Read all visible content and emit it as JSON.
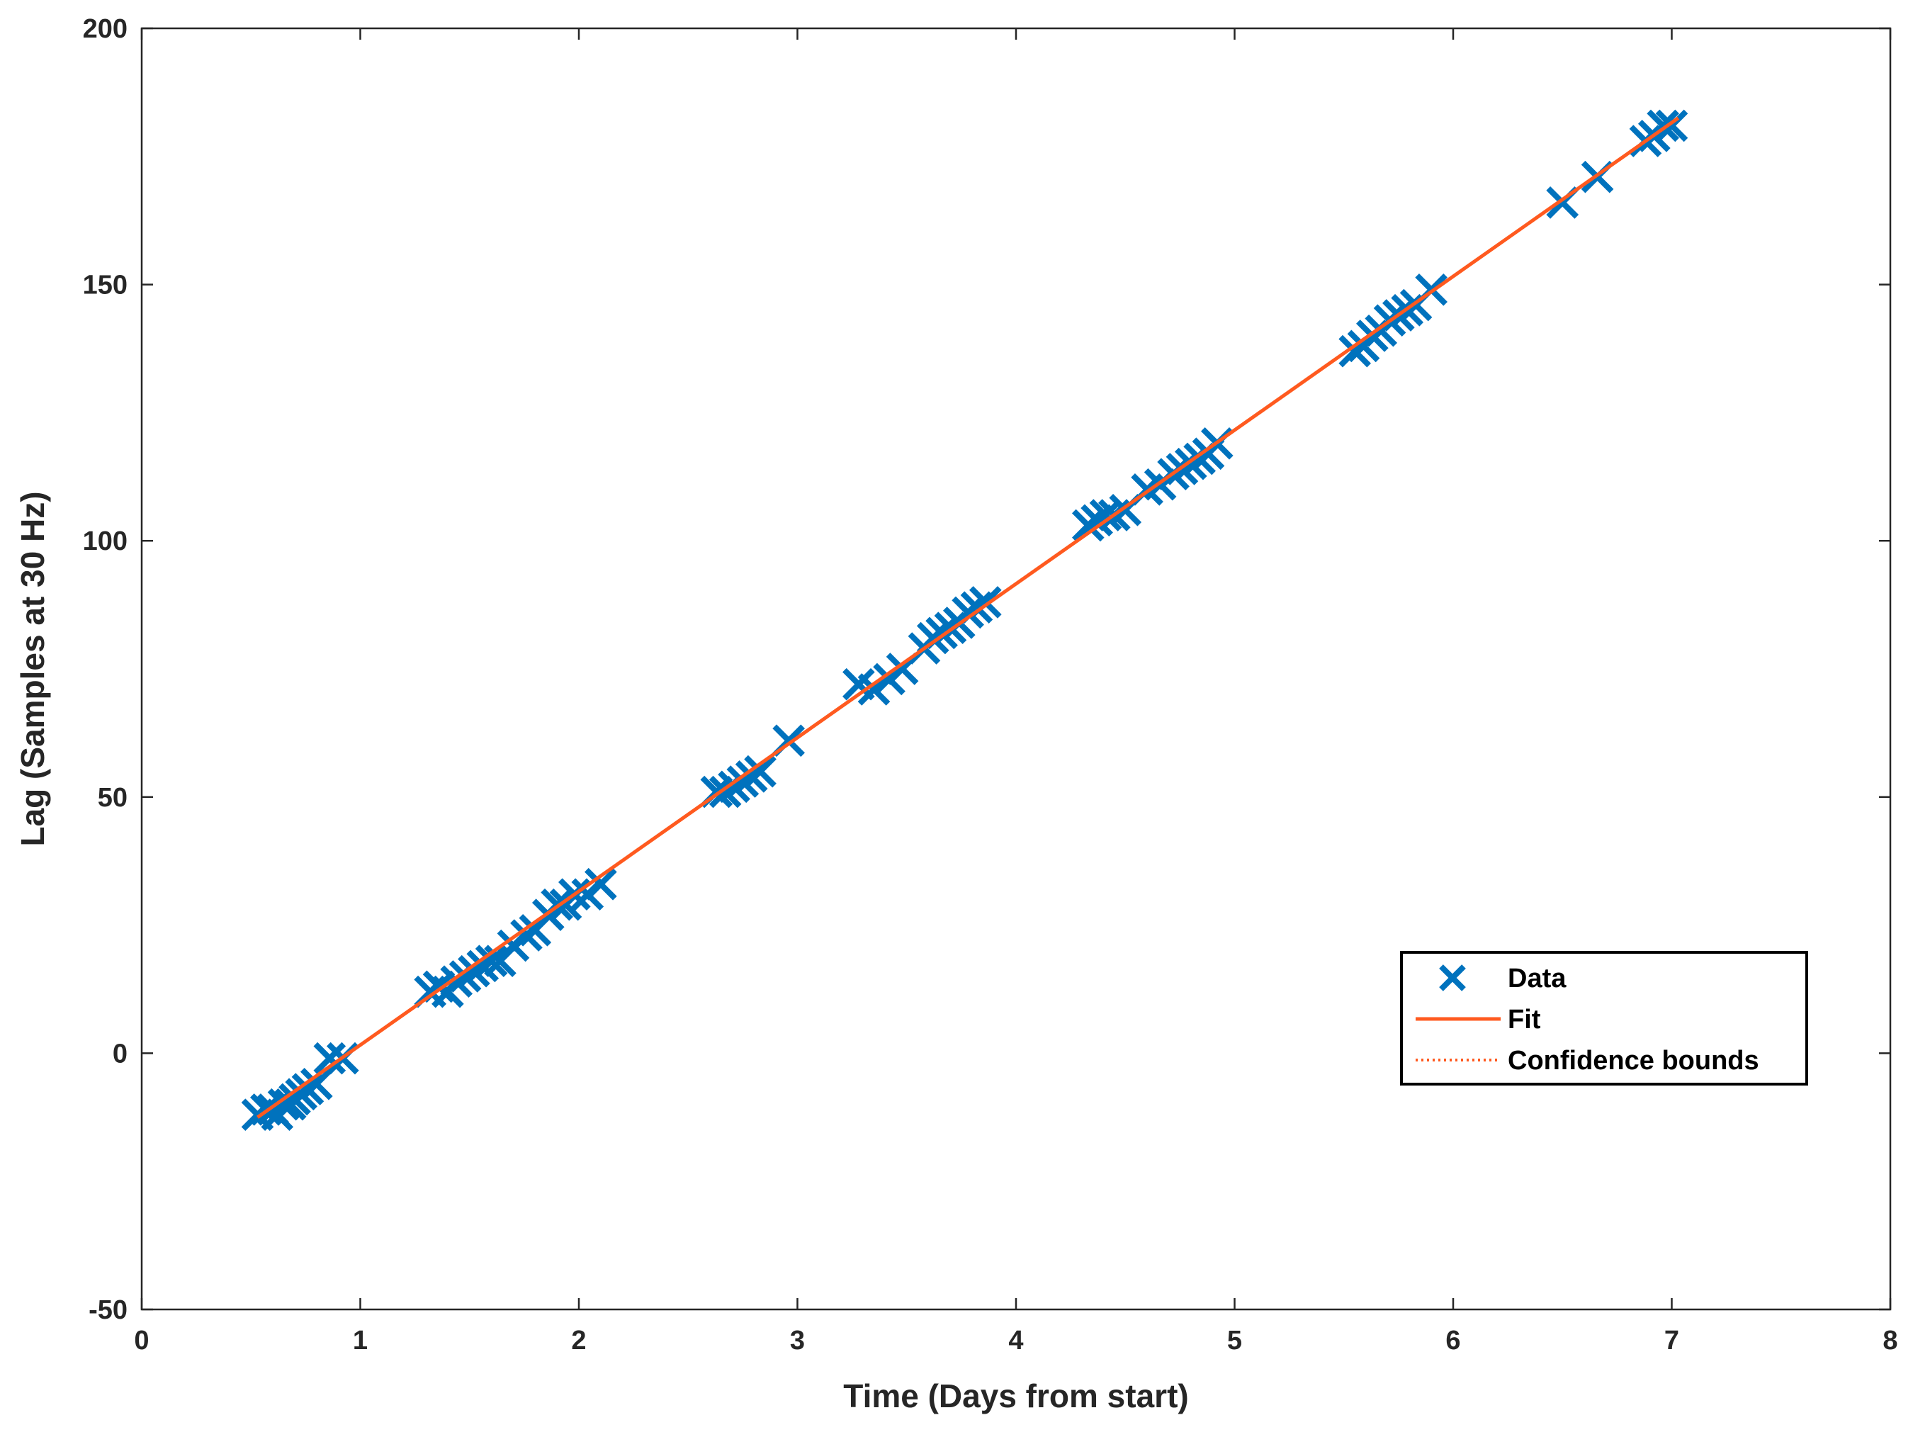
{
  "chart_data": {
    "type": "scatter",
    "title": "",
    "xlabel": "Time (Days from start)",
    "ylabel": "Lag (Samples at 30 Hz)",
    "xlim": [
      0,
      8
    ],
    "ylim": [
      -50,
      200
    ],
    "xticks": [
      0,
      1,
      2,
      3,
      4,
      5,
      6,
      7,
      8
    ],
    "yticks": [
      -50,
      0,
      50,
      100,
      150,
      200
    ],
    "xtick_labels": [
      "0",
      "1",
      "2",
      "3",
      "4",
      "5",
      "6",
      "7",
      "8"
    ],
    "ytick_labels": [
      "-50",
      "0",
      "50",
      "100",
      "150",
      "200"
    ],
    "grid": false,
    "legend": {
      "position": "lower-right",
      "entries": [
        "Data",
        "Fit",
        "Confidence bounds"
      ]
    },
    "series": [
      {
        "name": "Data",
        "style": "markers-x",
        "color": "#0072BD",
        "points": [
          [
            0.53,
            -12
          ],
          [
            0.57,
            -11
          ],
          [
            0.6,
            -11
          ],
          [
            0.62,
            -12
          ],
          [
            0.65,
            -10
          ],
          [
            0.68,
            -10
          ],
          [
            0.7,
            -9
          ],
          [
            0.73,
            -8
          ],
          [
            0.76,
            -7
          ],
          [
            0.8,
            -6
          ],
          [
            0.86,
            -1
          ],
          [
            0.92,
            -1
          ],
          [
            1.32,
            12
          ],
          [
            1.36,
            13
          ],
          [
            1.4,
            12
          ],
          [
            1.44,
            14
          ],
          [
            1.48,
            15
          ],
          [
            1.52,
            16
          ],
          [
            1.56,
            17
          ],
          [
            1.6,
            18
          ],
          [
            1.64,
            18
          ],
          [
            1.7,
            21
          ],
          [
            1.76,
            23
          ],
          [
            1.8,
            24
          ],
          [
            1.86,
            27
          ],
          [
            1.9,
            29
          ],
          [
            1.94,
            29
          ],
          [
            1.98,
            31
          ],
          [
            2.04,
            31
          ],
          [
            2.1,
            33
          ],
          [
            2.63,
            51
          ],
          [
            2.67,
            51
          ],
          [
            2.71,
            52
          ],
          [
            2.75,
            53
          ],
          [
            2.79,
            54
          ],
          [
            2.83,
            55
          ],
          [
            2.96,
            61
          ],
          [
            3.28,
            72
          ],
          [
            3.35,
            71
          ],
          [
            3.42,
            73
          ],
          [
            3.48,
            75
          ],
          [
            3.58,
            79
          ],
          [
            3.62,
            81
          ],
          [
            3.66,
            82
          ],
          [
            3.7,
            83
          ],
          [
            3.74,
            84
          ],
          [
            3.78,
            86
          ],
          [
            3.82,
            87
          ],
          [
            3.86,
            88
          ],
          [
            4.33,
            103
          ],
          [
            4.37,
            104
          ],
          [
            4.41,
            105
          ],
          [
            4.45,
            105
          ],
          [
            4.5,
            106
          ],
          [
            4.6,
            110
          ],
          [
            4.66,
            111
          ],
          [
            4.72,
            113
          ],
          [
            4.76,
            114
          ],
          [
            4.8,
            115
          ],
          [
            4.84,
            116
          ],
          [
            4.88,
            117
          ],
          [
            4.92,
            119
          ],
          [
            5.55,
            137
          ],
          [
            5.59,
            138
          ],
          [
            5.63,
            140
          ],
          [
            5.67,
            141
          ],
          [
            5.71,
            143
          ],
          [
            5.75,
            144
          ],
          [
            5.79,
            145
          ],
          [
            5.83,
            146
          ],
          [
            5.9,
            149
          ],
          [
            6.5,
            166
          ],
          [
            6.66,
            171
          ],
          [
            6.88,
            178
          ],
          [
            6.92,
            179
          ],
          [
            6.96,
            181
          ],
          [
            7.0,
            181
          ]
        ]
      },
      {
        "name": "Fit",
        "style": "solid-line",
        "color": "#FF5A1F",
        "points": [
          [
            0.53,
            -12.5
          ],
          [
            7.03,
            182.5
          ]
        ]
      },
      {
        "name": "Confidence bounds",
        "style": "dotted-line",
        "color": "#FF5A1F",
        "points": [
          [
            0.53,
            -12.5
          ],
          [
            7.03,
            182.5
          ]
        ]
      }
    ]
  }
}
